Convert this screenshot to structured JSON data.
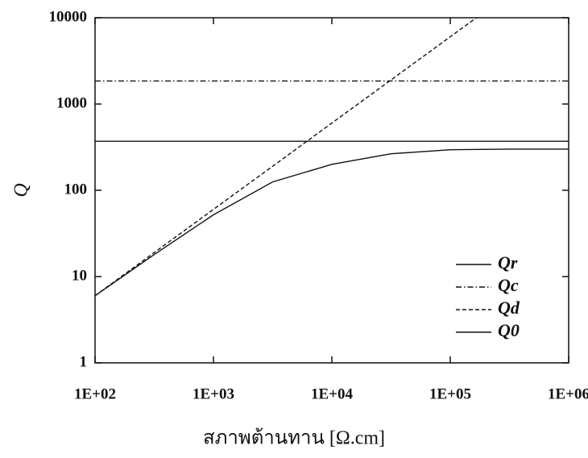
{
  "chart_data": {
    "type": "line",
    "xlabel": "สภาพต้านทาน [Ω.cm]",
    "ylabel": "Q",
    "xscale": "log",
    "yscale": "log",
    "xlim": [
      100,
      1000000
    ],
    "ylim": [
      1,
      10000
    ],
    "xticks": [
      {
        "value": 100,
        "label": "1E+02"
      },
      {
        "value": 1000,
        "label": "1E+03"
      },
      {
        "value": 10000,
        "label": "1E+04"
      },
      {
        "value": 100000,
        "label": "1E+05"
      },
      {
        "value": 1000000,
        "label": "1E+06"
      }
    ],
    "yticks": [
      1,
      10,
      100,
      1000,
      10000
    ],
    "legend": "lower right",
    "series": [
      {
        "name": "Qr",
        "color": "#111111",
        "dash": "solid",
        "x": [
          100,
          1000000
        ],
        "values": [
          370,
          370
        ]
      },
      {
        "name": "Qc",
        "color": "#111111",
        "dash": "dashdot",
        "x": [
          100,
          1000000
        ],
        "values": [
          1850,
          1850
        ]
      },
      {
        "name": "Qd",
        "color": "#111111",
        "dash": "dashed",
        "x": [
          100,
          166000
        ],
        "values": [
          6,
          10000
        ]
      },
      {
        "name": "Q0",
        "color": "#111111",
        "dash": "solid",
        "x": [
          100,
          316,
          1000,
          3160,
          10000,
          31600,
          100000,
          316000,
          1000000
        ],
        "values": [
          6,
          18,
          52,
          125,
          200,
          265,
          295,
          300,
          300
        ]
      }
    ]
  }
}
